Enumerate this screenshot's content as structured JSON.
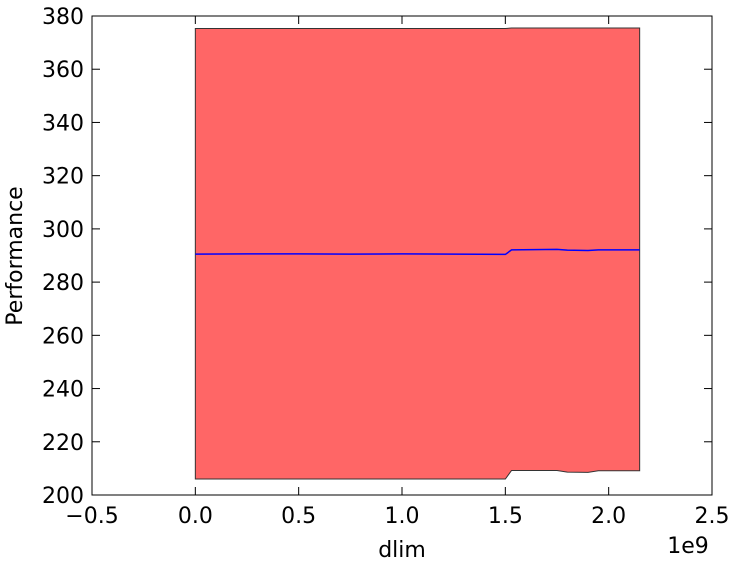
{
  "chart_data": {
    "type": "line",
    "xlabel": "dlim",
    "ylabel": "Performance",
    "x_offset_label": "1e9",
    "x": [
      0,
      0.25,
      0.5,
      0.75,
      1.0,
      1.25,
      1.5,
      1.53,
      1.75,
      1.8,
      1.9,
      1.95,
      2.15
    ],
    "values": [
      290.5,
      290.6,
      290.6,
      290.5,
      290.6,
      290.5,
      290.4,
      292.1,
      292.3,
      292.0,
      291.9,
      292.1,
      292.1
    ],
    "upper": [
      375.3,
      375.3,
      375.3,
      375.3,
      375.3,
      375.3,
      375.3,
      375.5,
      375.5,
      375.5,
      375.5,
      375.5,
      375.5
    ],
    "lower": [
      206.0,
      206.0,
      206.0,
      206.0,
      206.0,
      206.0,
      206.0,
      209.2,
      209.2,
      208.6,
      208.5,
      209.1,
      209.1
    ],
    "color": "#0000ff",
    "fill_color": "#ff6666",
    "xlim": [
      -0.5,
      2.5
    ],
    "xticks": [
      {
        "value": -0.5,
        "label": "−0.5"
      },
      {
        "value": 0,
        "label": "0.0"
      },
      0.5,
      {
        "value": 1,
        "label": "1.0"
      },
      1.5,
      {
        "value": 2,
        "label": "2.0"
      },
      2.5
    ],
    "ylim": [
      200,
      380
    ],
    "yticks": [
      200,
      220,
      240,
      260,
      280,
      300,
      320,
      340,
      360,
      380
    ]
  }
}
